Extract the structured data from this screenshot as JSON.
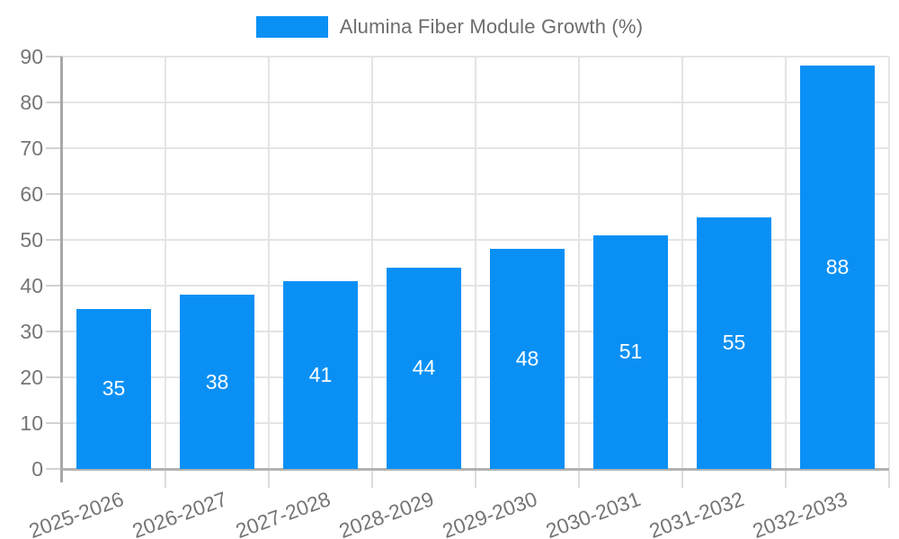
{
  "chart_data": {
    "type": "bar",
    "title": "Alumina Fiber Module Growth (%)",
    "legend": {
      "label": "Alumina Fiber Module Growth (%)",
      "position": "top-center"
    },
    "categories": [
      "2025-2026",
      "2026-2027",
      "2027-2028",
      "2028-2029",
      "2029-2030",
      "2030-2031",
      "2031-2032",
      "2032-2033"
    ],
    "series": [
      {
        "name": "Alumina Fiber Module Growth (%)",
        "values": [
          35,
          38,
          41,
          44,
          48,
          51,
          55,
          88
        ]
      }
    ],
    "value_labels": [
      "35",
      "38",
      "41",
      "44",
      "48",
      "51",
      "55",
      "88"
    ],
    "value_labels_position": "inside-center",
    "xlabel": "",
    "ylabel": "",
    "ylim": [
      0,
      90
    ],
    "yticks": [
      0,
      10,
      20,
      30,
      40,
      50,
      60,
      70,
      80,
      90
    ],
    "grid": "horizontal-and-vertical",
    "x_label_rotation_deg": -20,
    "colors": {
      "bar": "#0a90f5",
      "value_label": "#ffffff",
      "axis_text": "#757575",
      "legend_text": "#6d6d6d",
      "gridline": "#e4e4e4",
      "axis_line": "#a8a8a8",
      "background": "#ffffff"
    }
  }
}
